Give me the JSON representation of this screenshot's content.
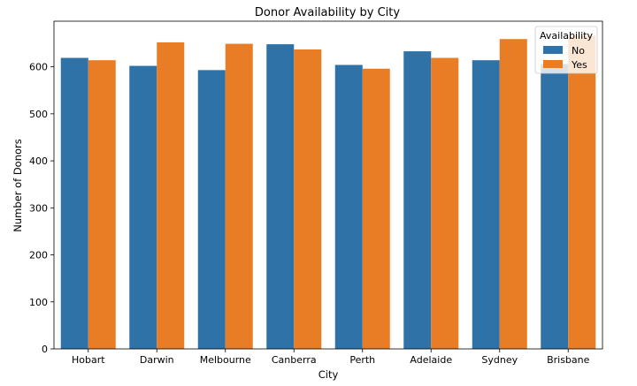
{
  "chart_data": {
    "type": "bar",
    "title": "Donor Availability by City",
    "xlabel": "City",
    "ylabel": "Number of Donors",
    "categories": [
      "Hobart",
      "Darwin",
      "Melbourne",
      "Canberra",
      "Perth",
      "Adelaide",
      "Sydney",
      "Brisbane"
    ],
    "series": [
      {
        "name": "No",
        "color": "#2f72a8",
        "values": [
          619,
          602,
          593,
          648,
          604,
          633,
          614,
          606
        ]
      },
      {
        "name": "Yes",
        "color": "#e87d25",
        "values": [
          614,
          652,
          649,
          637,
          596,
          619,
          659,
          666
        ]
      }
    ],
    "ylim": [
      0,
      697
    ],
    "yticks": [
      0,
      100,
      200,
      300,
      400,
      500,
      600
    ],
    "legend": {
      "title": "Availability",
      "position": "top-right"
    },
    "grid": false
  }
}
